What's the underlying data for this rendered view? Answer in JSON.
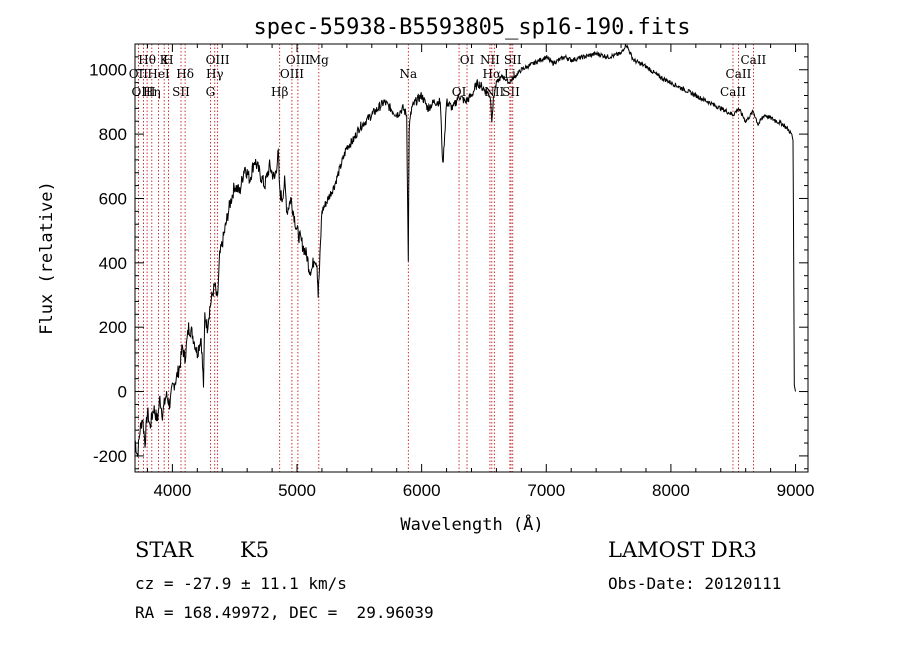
{
  "chart_data": {
    "type": "line",
    "title": "spec-55938-B5593805_sp16-190.fits",
    "xlabel": "Wavelength (Å)",
    "ylabel": "Flux (relative)",
    "xlim": [
      3700,
      9100
    ],
    "ylim": [
      -250,
      1080
    ],
    "xticks": [
      4000,
      5000,
      6000,
      7000,
      8000,
      9000
    ],
    "yticks": [
      -200,
      0,
      200,
      400,
      600,
      800,
      1000
    ],
    "grid": false,
    "spectrum": {
      "name": "flux",
      "x": [
        3700,
        3720,
        3740,
        3760,
        3780,
        3800,
        3820,
        3850,
        3880,
        3900,
        3920,
        3950,
        3980,
        4000,
        4030,
        4060,
        4080,
        4100,
        4130,
        4160,
        4200,
        4230,
        4250,
        4260,
        4280,
        4300,
        4320,
        4340,
        4360,
        4380,
        4400,
        4430,
        4460,
        4500,
        4540,
        4580,
        4620,
        4660,
        4700,
        4740,
        4780,
        4820,
        4850,
        4861,
        4880,
        4900,
        4920,
        4950,
        4980,
        5000,
        5040,
        5080,
        5100,
        5120,
        5140,
        5160,
        5170,
        5180,
        5200,
        5250,
        5300,
        5350,
        5400,
        5450,
        5500,
        5550,
        5600,
        5650,
        5700,
        5750,
        5800,
        5850,
        5880,
        5893,
        5900,
        5920,
        5950,
        6000,
        6050,
        6100,
        6150,
        6170,
        6200,
        6250,
        6300,
        6350,
        6400,
        6450,
        6500,
        6550,
        6563,
        6580,
        6600,
        6650,
        6700,
        6750,
        6800,
        6850,
        6900,
        6950,
        7000,
        7050,
        7100,
        7150,
        7200,
        7300,
        7400,
        7500,
        7600,
        7640,
        7700,
        7800,
        7900,
        8000,
        8100,
        8200,
        8300,
        8400,
        8500,
        8542,
        8600,
        8662,
        8700,
        8750,
        8800,
        8850,
        8900,
        8950,
        8970,
        8980,
        8990,
        9000
      ],
      "y": [
        -150,
        -200,
        -120,
        -80,
        -160,
        -60,
        -110,
        -50,
        -90,
        -20,
        -70,
        -10,
        -40,
        10,
        40,
        80,
        140,
        100,
        200,
        180,
        120,
        170,
        20,
        240,
        200,
        260,
        300,
        330,
        280,
        420,
        460,
        520,
        580,
        640,
        620,
        700,
        660,
        720,
        680,
        640,
        700,
        660,
        740,
        620,
        600,
        650,
        560,
        600,
        540,
        500,
        460,
        420,
        380,
        380,
        420,
        400,
        300,
        380,
        560,
        600,
        640,
        700,
        760,
        780,
        820,
        840,
        860,
        880,
        900,
        880,
        860,
        880,
        860,
        400,
        820,
        880,
        900,
        920,
        880,
        900,
        900,
        700,
        900,
        880,
        920,
        900,
        920,
        960,
        940,
        920,
        850,
        920,
        960,
        980,
        960,
        980,
        1000,
        1010,
        1020,
        1030,
        1040,
        1020,
        1030,
        1040,
        1030,
        1040,
        1050,
        1040,
        1050,
        1080,
        1030,
        1010,
        980,
        960,
        940,
        920,
        900,
        880,
        860,
        880,
        840,
        870,
        830,
        860,
        850,
        840,
        830,
        810,
        800,
        780,
        20,
        0
      ]
    },
    "line_markers": [
      {
        "label": "Hθ",
        "x": 3797
      },
      {
        "label": "OII",
        "x": 3727
      },
      {
        "label": "OIII",
        "x": 3768
      },
      {
        "label": "K",
        "x": 3934
      },
      {
        "label": "HeI",
        "x": 3889
      },
      {
        "label": "Hη",
        "x": 3835
      },
      {
        "label": "H",
        "x": 3968
      },
      {
        "label": "Hδ",
        "x": 4102
      },
      {
        "label": "SII",
        "x": 4069
      },
      {
        "label": "OIII",
        "x": 4363
      },
      {
        "label": "Hγ",
        "x": 4340
      },
      {
        "label": "G",
        "x": 4305
      },
      {
        "label": "OIII",
        "x": 5007
      },
      {
        "label": "OIII",
        "x": 4959
      },
      {
        "label": "Hβ",
        "x": 4861
      },
      {
        "label": "Mg",
        "x": 5175
      },
      {
        "label": "Na",
        "x": 5893
      },
      {
        "label": "OI",
        "x": 6300
      },
      {
        "label": "OI",
        "x": 6364
      },
      {
        "label": "Hα",
        "x": 6563
      },
      {
        "label": "SII",
        "x": 6717
      },
      {
        "label": "NII",
        "x": 6548
      },
      {
        "label": "Li",
        "x": 6708
      },
      {
        "label": "NII",
        "x": 6583
      },
      {
        "label": "SII",
        "x": 6731
      },
      {
        "label": "CaII",
        "x": 8542
      },
      {
        "label": "CaII",
        "x": 8498
      },
      {
        "label": "CaII",
        "x": 8662
      }
    ]
  },
  "info": {
    "class": "STAR",
    "subclass": "K5",
    "survey": "LAMOST DR3",
    "cz": "cz = -27.9 ± 11.1 km/s",
    "obs_date": "Obs-Date: 20120111",
    "radec": "RA = 168.49972, DEC =  29.96039"
  }
}
